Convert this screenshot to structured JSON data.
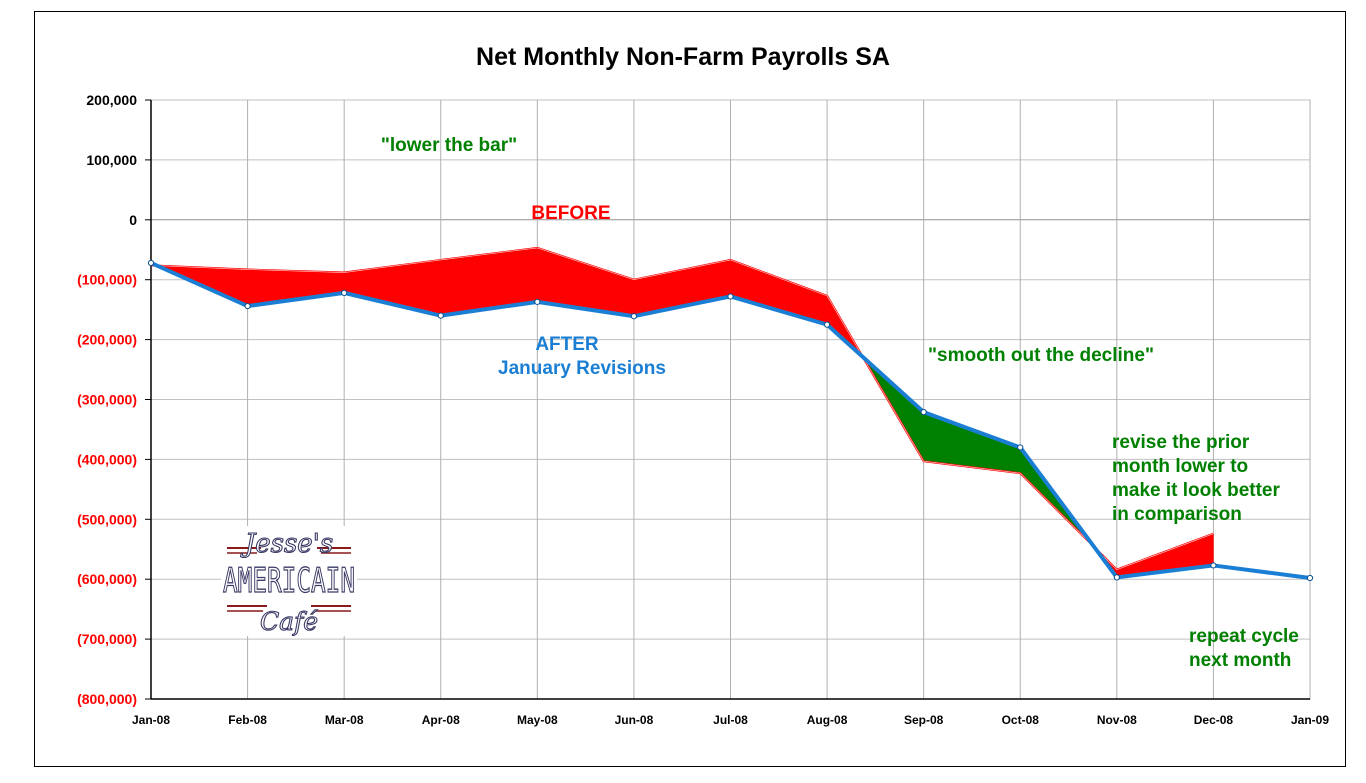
{
  "chart_data": {
    "type": "area",
    "title": "Net Monthly Non-Farm Payrolls SA",
    "xlabel": "",
    "ylabel": "",
    "ylim": [
      -800000,
      200000
    ],
    "y_ticks": [
      200000,
      100000,
      0,
      -100000,
      -200000,
      -300000,
      -400000,
      -500000,
      -600000,
      -700000,
      -800000
    ],
    "y_tick_labels": [
      "200,000",
      "100,000",
      "0",
      "(100,000)",
      "(200,000)",
      "(300,000)",
      "(400,000)",
      "(500,000)",
      "(600,000)",
      "(700,000)",
      "(800,000)"
    ],
    "categories": [
      "Jan-08",
      "Feb-08",
      "Mar-08",
      "Apr-08",
      "May-08",
      "Jun-08",
      "Jul-08",
      "Aug-08",
      "Sep-08",
      "Oct-08",
      "Nov-08",
      "Dec-08",
      "Jan-09"
    ],
    "series": [
      {
        "name": "BEFORE",
        "color": "#ff0000",
        "values": [
          -76000,
          -83000,
          -88000,
          -67000,
          -47000,
          -100000,
          -67000,
          -127000,
          -403000,
          -423000,
          -584000,
          -524000,
          null
        ]
      },
      {
        "name": "AFTER January Revisions",
        "color": "#1a7fd4",
        "values": [
          -72000,
          -144000,
          -122000,
          -160000,
          -137000,
          -161000,
          -128000,
          -175000,
          -321000,
          -380000,
          -597000,
          -577000,
          -598000
        ]
      }
    ],
    "fill_colors": {
      "before_higher": "#ff0000",
      "after_higher": "#008000"
    },
    "grid": true
  },
  "annotations": {
    "before": "BEFORE",
    "after": "AFTER",
    "after_sub": "January Revisions",
    "lower_bar": "\"lower the bar\"",
    "smooth": "\"smooth out the decline\"",
    "revise": [
      "revise the prior",
      "month lower to",
      "make it look better",
      "in comparison"
    ],
    "repeat": [
      "repeat cycle",
      "next month"
    ]
  },
  "logo": {
    "top": "Jesse's",
    "middle": "AMERICAIN",
    "bottom": "Café"
  },
  "colors": {
    "red": "#ff0000",
    "blue": "#1a7fd4",
    "green": "#008000",
    "ytick_positive": "#000000",
    "ytick_negative": "#ff0000"
  }
}
